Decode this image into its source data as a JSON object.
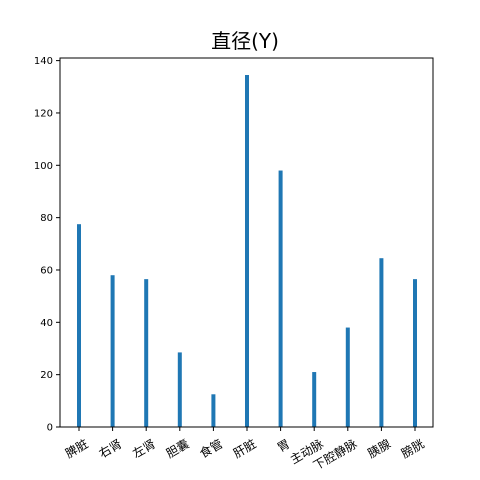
{
  "chart_data": {
    "type": "bar",
    "title": "直径(Y)",
    "xlabel": "",
    "ylabel": "",
    "categories": [
      "脾脏",
      "右肾",
      "左肾",
      "胆囊",
      "食管",
      "肝脏",
      "胃",
      "主动脉",
      "下腔静脉",
      "胰腺",
      "膀胱"
    ],
    "values": [
      77.5,
      58,
      56.5,
      28.5,
      12.5,
      134.5,
      98,
      21,
      38,
      64.5,
      56.5
    ],
    "ylim": [
      0,
      141
    ],
    "yticks": [
      0,
      20,
      40,
      60,
      80,
      100,
      120,
      140
    ],
    "grid": false,
    "bar_color": "#1f77b4"
  }
}
